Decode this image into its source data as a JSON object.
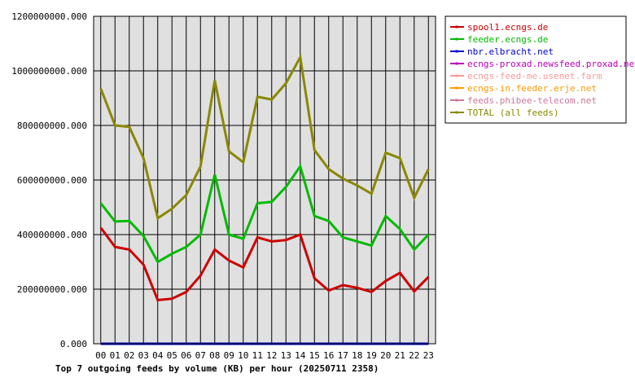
{
  "chart_data": {
    "type": "line",
    "title": "Top 7 outgoing feeds by volume (KB) per hour (20250711 2358)",
    "xlabel": "",
    "ylabel": "",
    "categories": [
      "00",
      "01",
      "02",
      "03",
      "04",
      "05",
      "06",
      "07",
      "08",
      "09",
      "10",
      "11",
      "12",
      "13",
      "14",
      "15",
      "16",
      "17",
      "18",
      "19",
      "20",
      "21",
      "22",
      "23"
    ],
    "ylim": [
      0,
      1200000000
    ],
    "yticks": [
      0,
      200000000,
      400000000,
      600000000,
      800000000,
      1000000000,
      1200000000
    ],
    "ytick_labels": [
      "0.000",
      "200000000.000",
      "400000000.000",
      "600000000.000",
      "800000000.000",
      "1000000000.000",
      "1200000000.000"
    ],
    "grid": true,
    "legend_position": "right",
    "series": [
      {
        "name": "spool1.ecngs.de",
        "color": "#cc0000",
        "values": [
          425000000,
          355000000,
          345000000,
          290000000,
          160000000,
          165000000,
          190000000,
          250000000,
          345000000,
          305000000,
          280000000,
          390000000,
          375000000,
          380000000,
          400000000,
          240000000,
          195000000,
          215000000,
          205000000,
          190000000,
          230000000,
          260000000,
          192000000,
          245000000
        ]
      },
      {
        "name": "feeder.ecngs.de",
        "color": "#00bb00",
        "values": [
          515000000,
          448000000,
          450000000,
          395000000,
          300000000,
          330000000,
          355000000,
          400000000,
          620000000,
          400000000,
          385000000,
          515000000,
          520000000,
          575000000,
          650000000,
          468000000,
          450000000,
          390000000,
          375000000,
          360000000,
          468000000,
          420000000,
          345000000,
          400000000
        ]
      },
      {
        "name": "nbr.elbracht.net",
        "color": "#0000cc",
        "values": [
          0,
          0,
          0,
          0,
          0,
          0,
          0,
          0,
          0,
          0,
          0,
          0,
          0,
          0,
          0,
          0,
          0,
          0,
          0,
          0,
          0,
          0,
          0,
          0
        ]
      },
      {
        "name": "ecngs-proxad.newsfeed.proxad.net",
        "color": "#bb00bb",
        "values": [
          0,
          0,
          0,
          0,
          0,
          0,
          0,
          0,
          0,
          0,
          0,
          0,
          0,
          0,
          0,
          0,
          0,
          0,
          0,
          0,
          0,
          0,
          0,
          0
        ]
      },
      {
        "name": "ecngs-feed-me.usenet.farm",
        "color": "#ff9999",
        "values": [
          0,
          0,
          0,
          0,
          0,
          0,
          0,
          0,
          0,
          0,
          0,
          0,
          0,
          0,
          0,
          0,
          0,
          0,
          0,
          0,
          0,
          0,
          0,
          0
        ]
      },
      {
        "name": "ecngs-in.feeder.erje.net",
        "color": "#ff9900",
        "values": [
          0,
          0,
          0,
          0,
          0,
          0,
          0,
          0,
          0,
          0,
          0,
          0,
          0,
          0,
          0,
          0,
          0,
          0,
          0,
          0,
          0,
          0,
          0,
          0
        ]
      },
      {
        "name": "feeds.phibee-telecom.net",
        "color": "#cc7799",
        "values": [
          0,
          0,
          0,
          0,
          0,
          0,
          0,
          0,
          0,
          0,
          0,
          0,
          0,
          0,
          0,
          0,
          0,
          0,
          0,
          0,
          0,
          0,
          0,
          0
        ]
      },
      {
        "name": "TOTAL (all feeds)",
        "color": "#888800",
        "values": [
          935000000,
          800000000,
          795000000,
          680000000,
          460000000,
          495000000,
          545000000,
          650000000,
          965000000,
          705000000,
          665000000,
          905000000,
          895000000,
          955000000,
          1050000000,
          710000000,
          640000000,
          605000000,
          580000000,
          550000000,
          700000000,
          680000000,
          535000000,
          640000000
        ]
      }
    ]
  }
}
